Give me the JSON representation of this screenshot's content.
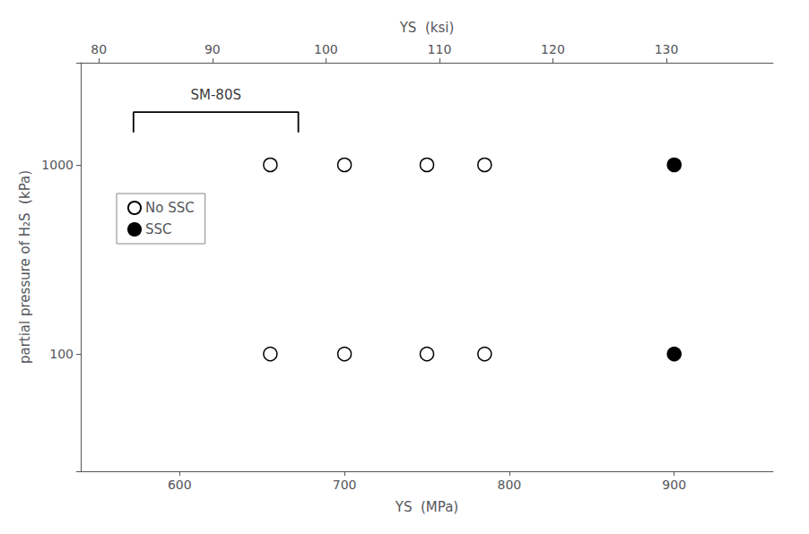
{
  "chart_data": {
    "type": "scatter",
    "xlabel": "YS  (MPa)",
    "x2label": "YS  (ksi)",
    "ylabel": "partial pressure of H₂S  (kPa)",
    "log": "y",
    "grid": false,
    "legend": "upper left",
    "xlim": [
      540,
      960
    ],
    "xticks": [
      600,
      700,
      800,
      900
    ],
    "x2lim": [
      78.4,
      139.4
    ],
    "x2ticks": [
      80,
      90,
      100,
      110,
      120,
      130
    ],
    "ylim": [
      23.988329190194904,
      3467.3685045253164
    ],
    "yticks": [
      100,
      1000
    ],
    "series": [
      {
        "name": "No SSC",
        "color": "#000000",
        "marker": "open circle",
        "x": [
          655,
          700,
          750,
          785,
          655,
          700,
          750,
          785
        ],
        "values": [
          1000,
          1000,
          1000,
          1000,
          100,
          100,
          100,
          100
        ]
      },
      {
        "name": "SSC",
        "color": "#000000",
        "marker": "filled circle",
        "x": [
          900,
          900
        ],
        "values": [
          1000,
          100
        ]
      }
    ],
    "annotations": [
      {
        "text": "SM-80S",
        "x": 622,
        "y": 2100,
        "bracket": {
          "x": [
            572,
            672
          ],
          "y": 1900,
          "y_low": 1484.375
        }
      }
    ]
  }
}
